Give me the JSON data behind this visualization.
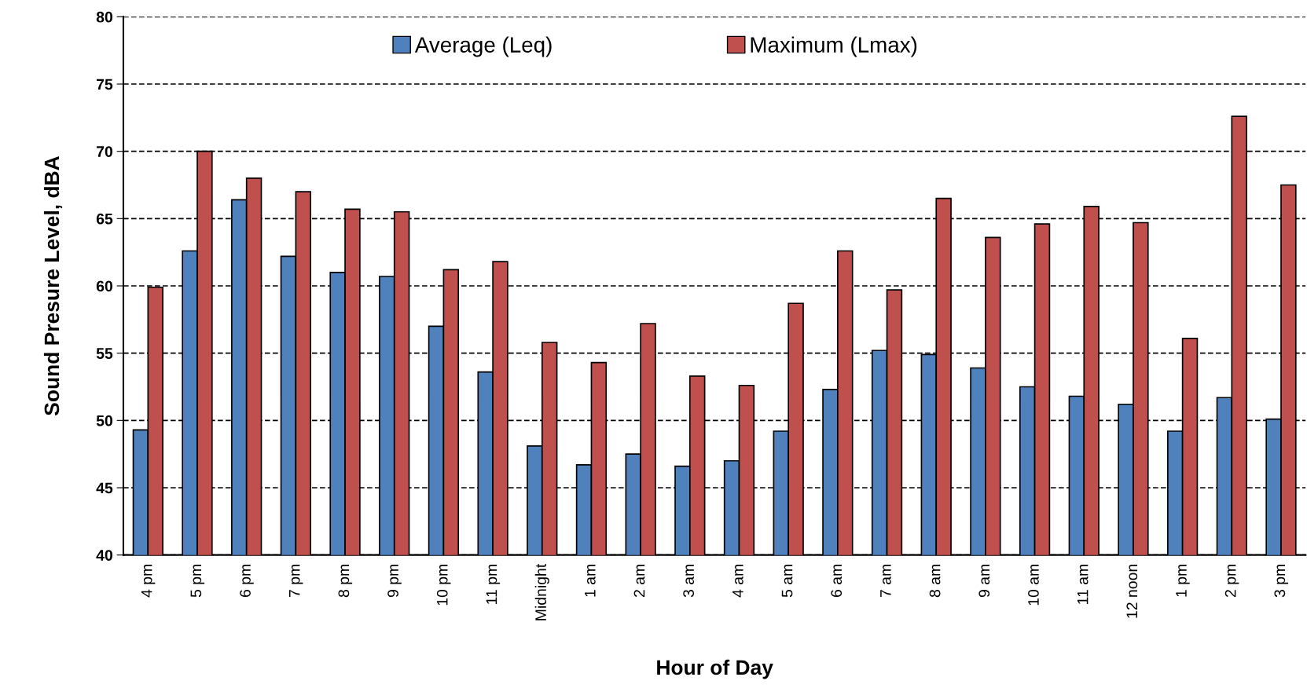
{
  "chart_data": {
    "type": "bar",
    "xlabel": "Hour of Day",
    "ylabel": "Sound Presure Level, dBA",
    "categories": [
      "4 pm",
      "5 pm",
      "6 pm",
      "7 pm",
      "8 pm",
      "9 pm",
      "10 pm",
      "11 pm",
      "Midnight",
      "1 am",
      "2 am",
      "3 am",
      "4 am",
      "5 am",
      "6 am",
      "7 am",
      "8 am",
      "9 am",
      "10 am",
      "11 am",
      "12 noon",
      "1 pm",
      "2 pm",
      "3 pm"
    ],
    "series": [
      {
        "name": "Average (Leq)",
        "color": "#4f81bd",
        "values": [
          49.3,
          62.6,
          66.4,
          62.2,
          61.0,
          60.7,
          57.0,
          53.6,
          48.1,
          46.7,
          47.5,
          46.6,
          47.0,
          49.2,
          52.3,
          55.2,
          54.9,
          53.9,
          52.5,
          51.8,
          51.2,
          49.2,
          51.7,
          50.1
        ]
      },
      {
        "name": "Maximum (Lmax)",
        "color": "#c0504d",
        "values": [
          59.9,
          70.0,
          68.0,
          67.0,
          65.7,
          65.5,
          61.2,
          61.8,
          55.8,
          54.3,
          57.2,
          53.3,
          52.6,
          58.7,
          62.6,
          59.7,
          66.5,
          63.6,
          64.6,
          65.9,
          64.7,
          56.1,
          72.6,
          67.5
        ]
      }
    ],
    "ylim": [
      40,
      80
    ],
    "yticks": [
      40,
      45,
      50,
      55,
      60,
      65,
      70,
      75,
      80
    ],
    "grid": "y",
    "legend": "top"
  }
}
